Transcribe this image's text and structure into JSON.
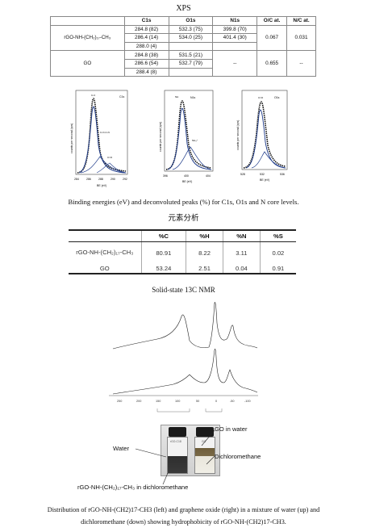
{
  "xps": {
    "title": "XPS",
    "headers": [
      "",
      "C1s",
      "O1s",
      "N1s",
      "O/C at.",
      "N/C at."
    ],
    "rows": [
      {
        "sample": "rGO-NH-(CH₂)₁₇-CH₃",
        "c1s": [
          "284.8 (82)",
          "286.4 (14)",
          "288.0 (4)"
        ],
        "o1s": [
          "532.3 (75)",
          "534.0 (25)"
        ],
        "n1s": [
          "399.8 (70)",
          "401.4 (30)"
        ],
        "oc": "0.067",
        "nc": "0.031"
      },
      {
        "sample": "GO",
        "c1s": [
          "284.8 (38)",
          "286.6 (54)",
          "288.4 (8)"
        ],
        "o1s": [
          "531.5 (21)",
          "532.7 (79)"
        ],
        "n1s": [
          "--"
        ],
        "oc": "0.655",
        "nc": "--"
      }
    ],
    "spectra": [
      {
        "label": "C1s",
        "xlabel": "BE (eV)",
        "ylabel": "counts per second (cps)",
        "ticks": [
          "284",
          "286",
          "288",
          "290",
          "292"
        ],
        "annotations": [
          "C-C",
          "C-O-C-N",
          "C=O"
        ]
      },
      {
        "label": "N1s",
        "xlabel": "BE (eV)",
        "ylabel": "counts per second (cps)",
        "ticks": [
          "396",
          "400",
          "404"
        ],
        "annotations": [
          "NH",
          "NH₃⁺"
        ]
      },
      {
        "label": "O1s",
        "xlabel": "BE (eV)",
        "ylabel": "counts per second (cps)",
        "ticks": [
          "528",
          "532",
          "536"
        ],
        "annotations": [
          "C=O"
        ]
      }
    ],
    "caption": "Binding energies (eV) and deconvoluted peaks (%) for C1s, O1s and N core levels."
  },
  "elemental": {
    "title": "元素分析",
    "headers": [
      "",
      "%C",
      "%H",
      "%N",
      "%S"
    ],
    "rows": [
      {
        "sample": "rGO-NH-(CH₂)₁₇-CH₃",
        "values": [
          "80.91",
          "8.22",
          "3.11",
          "0.02"
        ]
      },
      {
        "sample": "GO",
        "values": [
          "53.24",
          "2.51",
          "0.04",
          "0.91"
        ]
      }
    ]
  },
  "nmr": {
    "title": "Solid-state 13C NMR",
    "ticks": [
      "250",
      "200",
      "150",
      "100",
      "50",
      "0",
      "-50",
      "-100"
    ]
  },
  "photo": {
    "vial_labels": [
      "rGO-C18",
      "GO"
    ],
    "labels": {
      "water": "Water",
      "go_in_water": "GO in water",
      "dichloromethane": "Dichloromethane",
      "rgo_in_dcm": "rGO-NH-(CH₂)₁₇-CH₃ in dichloromethane"
    },
    "caption_line1": "Distribution of rGO-NH-(CH2)17-CH3 (left) and graphene oxide (right) in a mixture of water (up) and",
    "caption_line2": "dichloromethane (down) showing hydrophobicity of rGO-NH-(CH2)17-CH3."
  }
}
